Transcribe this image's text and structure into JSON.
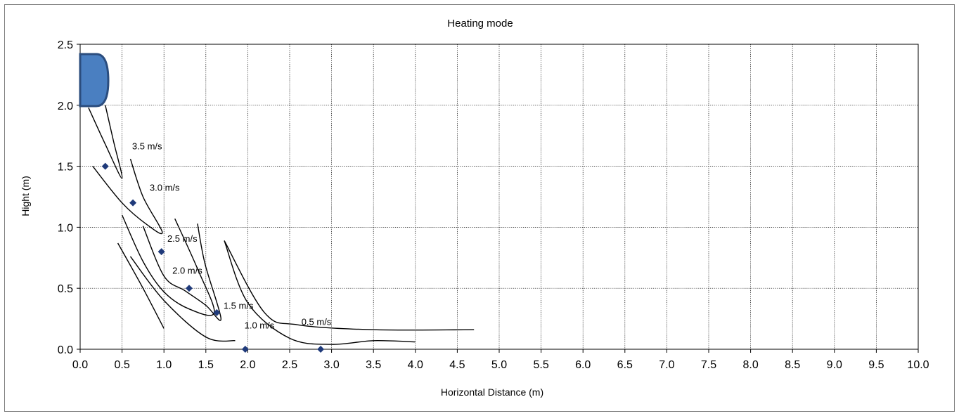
{
  "chart_data": {
    "type": "scatter",
    "title": "Heating mode",
    "xlabel": "Horizontal Distance (m)",
    "ylabel": "Hight (m)",
    "xlim": [
      0,
      10
    ],
    "ylim": [
      0,
      2.5
    ],
    "x_ticks": [
      "0.0",
      "0.5",
      "1.0",
      "1.5",
      "2.0",
      "2.5",
      "3.0",
      "3.5",
      "4.0",
      "4.5",
      "5.0",
      "5.5",
      "6.0",
      "6.5",
      "7.0",
      "7.5",
      "8.0",
      "8.5",
      "9.0",
      "9.5",
      "10.0"
    ],
    "y_ticks": [
      "0.0",
      "0.5",
      "1.0",
      "1.5",
      "2.0",
      "2.5"
    ],
    "grid": true,
    "marker_color": "#1f3a7a",
    "unit_color": "#4a7fc1",
    "points": [
      {
        "x": 0.3,
        "y": 1.5
      },
      {
        "x": 0.63,
        "y": 1.2
      },
      {
        "x": 0.97,
        "y": 0.8
      },
      {
        "x": 1.3,
        "y": 0.5
      },
      {
        "x": 1.63,
        "y": 0.3
      },
      {
        "x": 1.97,
        "y": 0.0
      },
      {
        "x": 2.87,
        "y": 0.0
      }
    ],
    "contours": [
      {
        "label": "3.5 m/s",
        "label_at": [
          0.62,
          1.64
        ],
        "points": [
          [
            0.1,
            1.98
          ],
          [
            0.3,
            1.68
          ],
          [
            0.5,
            1.4
          ],
          [
            0.4,
            1.7
          ],
          [
            0.3,
            2.0
          ]
        ]
      },
      {
        "label": "3.0 m/s",
        "label_at": [
          0.83,
          1.3
        ],
        "points": [
          [
            0.15,
            1.5
          ],
          [
            0.5,
            1.2
          ],
          [
            0.8,
            1.02
          ],
          [
            0.98,
            0.96
          ],
          [
            0.75,
            1.25
          ],
          [
            0.6,
            1.56
          ]
        ]
      },
      {
        "label": "2.5 m/s",
        "label_at": [
          1.04,
          0.88
        ],
        "points": [
          [
            0.5,
            1.1
          ],
          [
            0.75,
            0.72
          ],
          [
            1.0,
            0.47
          ],
          [
            1.3,
            0.33
          ],
          [
            1.6,
            0.3
          ],
          [
            1.4,
            0.66
          ],
          [
            1.13,
            1.07
          ]
        ]
      },
      {
        "label": "2.0 m/s",
        "label_at": [
          1.1,
          0.62
        ],
        "points": [
          [
            0.75,
            1.01
          ],
          [
            1.0,
            0.6
          ],
          [
            1.25,
            0.48
          ],
          [
            1.5,
            0.36
          ],
          [
            1.68,
            0.25
          ],
          [
            1.49,
            0.7
          ],
          [
            1.4,
            1.03
          ]
        ]
      },
      {
        "label": "1.5 m/s",
        "label_at": [
          1.71,
          0.33
        ],
        "points": [
          [
            0.45,
            0.87
          ],
          [
            0.75,
            0.5
          ],
          [
            1.0,
            0.17
          ]
        ]
      },
      {
        "label": "1.0 m/s",
        "label_at": [
          1.96,
          0.17
        ],
        "points": [
          [
            0.6,
            0.76
          ],
          [
            1.0,
            0.4
          ],
          [
            1.5,
            0.1
          ],
          [
            1.85,
            0.07
          ]
        ]
      },
      {
        "label": "0.5 m/s",
        "label_at": [
          2.64,
          0.2
        ],
        "points": [
          [
            1.72,
            0.89
          ],
          [
            2.0,
            0.38
          ],
          [
            2.5,
            0.09
          ],
          [
            3.0,
            0.04
          ],
          [
            3.5,
            0.07
          ],
          [
            4.0,
            0.06
          ]
        ]
      },
      {
        "label": "",
        "label_at": null,
        "points": [
          [
            1.72,
            0.89
          ],
          [
            2.2,
            0.3
          ],
          [
            2.6,
            0.2
          ],
          [
            3.5,
            0.16
          ],
          [
            4.7,
            0.16
          ]
        ]
      }
    ]
  }
}
